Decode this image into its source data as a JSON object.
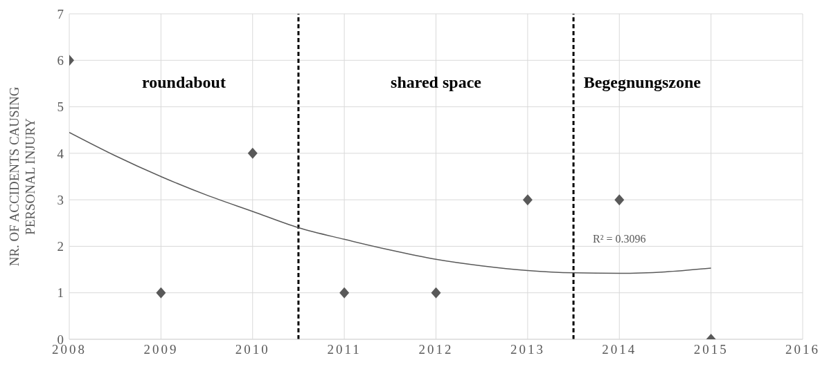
{
  "chart_data": {
    "type": "scatter",
    "ylabel": "NR. OF ACCIDENTS CAUSING PERSONAL INJURY",
    "x": [
      2008,
      2009,
      2010,
      2011,
      2012,
      2013,
      2014,
      2015
    ],
    "series": [
      {
        "color": "#595959",
        "marker": "diamond",
        "values": [
          6,
          1,
          4,
          1,
          1,
          3,
          3,
          0
        ]
      },
      {
        "type": "line",
        "color": "#595959",
        "marker": "none",
        "x": [
          2008,
          2008.5,
          2009,
          2009.5,
          2010,
          2010.5,
          2011,
          2011.5,
          2012,
          2012.5,
          2013,
          2013.5,
          2014,
          2014.5,
          2015
        ],
        "values": [
          4.45,
          3.95,
          3.5,
          3.1,
          2.75,
          2.4,
          2.15,
          1.92,
          1.72,
          1.58,
          1.48,
          1.43,
          1.42,
          1.45,
          1.53
        ]
      }
    ],
    "xlim": [
      2008,
      2016
    ],
    "xticks": [
      2008,
      2009,
      2010,
      2011,
      2012,
      2013,
      2014,
      2015,
      2016
    ],
    "ylim": [
      0,
      7
    ],
    "yticks": [
      0,
      1,
      2,
      3,
      4,
      5,
      6,
      7
    ],
    "grid": true,
    "ref_lines": [
      {
        "axis": "x",
        "value": 2010.5,
        "color": "#000000",
        "line_style": "dashed"
      },
      {
        "axis": "x",
        "value": 2013.5,
        "color": "#000000",
        "line_style": "dashed"
      }
    ],
    "annotations": [
      "roundabout",
      "shared space",
      "Begegnungszone",
      "R² = 0.3096"
    ]
  }
}
